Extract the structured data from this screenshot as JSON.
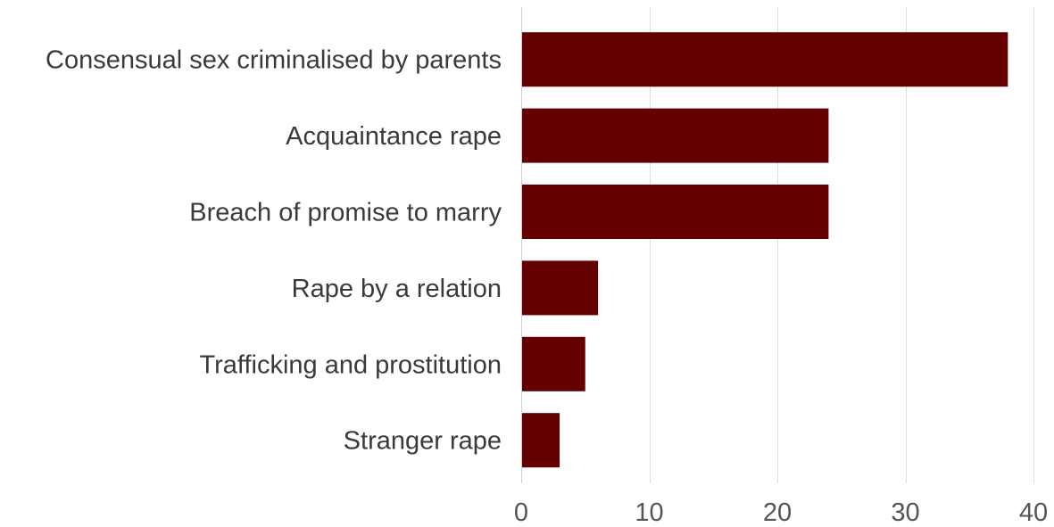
{
  "chart_data": {
    "type": "bar",
    "orientation": "horizontal",
    "title": "",
    "xlabel": "",
    "ylabel": "",
    "categories": [
      "Consensual sex criminalised by parents",
      "Acquaintance rape",
      "Breach of promise to marry",
      "Rape by a relation",
      "Trafficking and prostitution",
      "Stranger rape"
    ],
    "values": [
      38,
      24,
      24,
      6,
      5,
      3
    ],
    "xlim": [
      0,
      40
    ],
    "xticks": [
      "0",
      "10",
      "20",
      "30",
      "40"
    ],
    "grid": "vertical",
    "bar_color": "#640000"
  }
}
